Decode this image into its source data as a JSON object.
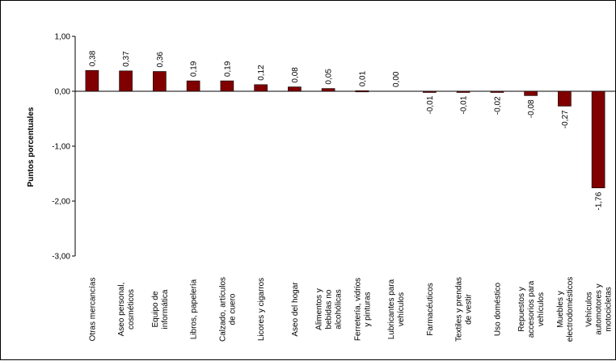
{
  "chart_data": {
    "type": "bar",
    "title": "",
    "xlabel": "",
    "ylabel": "Puntos porcentuales",
    "ylim": [
      -3,
      1
    ],
    "yticks": [
      "1,00",
      "0,00",
      "-1,00",
      "-2,00",
      "-3,00"
    ],
    "ytick_values": [
      1,
      0,
      -1,
      -2,
      -3
    ],
    "grid": false,
    "legend": "none",
    "bar_color": "#800000",
    "categories": [
      [
        "Otras mercancías"
      ],
      [
        "Aseo personal,",
        "cosméticos"
      ],
      [
        "Equipo de",
        "informática"
      ],
      [
        "Libros, papelería"
      ],
      [
        "Calzado, artículos",
        "de cuero"
      ],
      [
        "Licores y cigarros"
      ],
      [
        "Aseo del  hogar"
      ],
      [
        "Alimentos  y",
        "bebidas no",
        "alcohólicas"
      ],
      [
        "Ferretería, vidrios",
        "y pinturas"
      ],
      [
        "Lubricantes para",
        "vehículos"
      ],
      [
        "Farmacéuticos"
      ],
      [
        "Textiles y prendas",
        "de vestir"
      ],
      [
        "Uso doméstico"
      ],
      [
        "Repuestos y",
        "accesorios para",
        "vehículos"
      ],
      [
        "Muebles y",
        "electrodomésticos"
      ],
      [
        "Vehículos",
        "automotores y",
        "motocicletas"
      ]
    ],
    "values": [
      0.38,
      0.37,
      0.36,
      0.19,
      0.19,
      0.12,
      0.08,
      0.05,
      0.01,
      0.0,
      -0.01,
      -0.01,
      -0.02,
      -0.08,
      -0.27,
      -1.76
    ],
    "value_labels": [
      "0,38",
      "0,37",
      "0,36",
      "0,19",
      "0,19",
      "0,12",
      "0,08",
      "0,05",
      "0,01",
      "0,00",
      "-0,01",
      "-0,01",
      "-0,02",
      "-0,08",
      "-0,27",
      "-1,76"
    ]
  }
}
